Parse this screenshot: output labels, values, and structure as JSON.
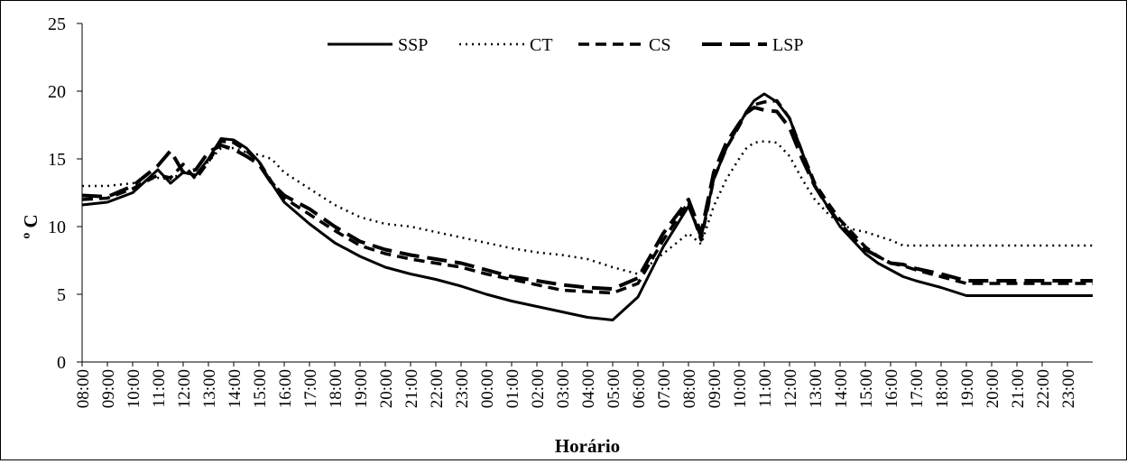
{
  "chart_data": {
    "type": "line",
    "xlabel": "Horário",
    "ylabel": "º C",
    "ylim": [
      0,
      25
    ],
    "yticks": [
      "0",
      "5",
      "10",
      "15",
      "20",
      "25"
    ],
    "grid": false,
    "legend_position": "top-center",
    "x_tick_labels": [
      "08:00",
      "09:00",
      "10:00",
      "11:00",
      "12:00",
      "13:00",
      "14:00",
      "15:00",
      "16:00",
      "17:00",
      "18:00",
      "19:00",
      "20:00",
      "21:00",
      "22:00",
      "23:00",
      "00:00",
      "01:00",
      "02:00",
      "03:00",
      "04:00",
      "05:00",
      "06:00",
      "07:00",
      "08:00",
      "09:00",
      "10:00",
      "11:00",
      "12:00",
      "13:00",
      "14:00",
      "15:00",
      "16:00",
      "17:00",
      "18:00",
      "19:00",
      "20:00",
      "21:00",
      "22:00",
      "23:00"
    ],
    "x_hours": [
      0,
      1,
      2,
      3,
      3.5,
      4,
      4.5,
      5,
      5.5,
      6,
      6.5,
      7,
      7.5,
      8,
      9,
      10,
      11,
      12,
      13,
      14,
      15,
      16,
      17,
      18,
      19,
      20,
      21,
      22,
      23,
      24,
      24.5,
      25,
      25.5,
      26,
      26.3,
      26.6,
      27,
      27.5,
      28,
      28.5,
      29,
      29.5,
      30,
      30.5,
      31,
      31.5,
      32,
      32.5,
      33,
      34,
      35,
      36,
      37,
      38,
      39,
      40
    ],
    "series": [
      {
        "name": "SSP",
        "style": "solid",
        "color": "#000000",
        "values": [
          11.6,
          11.8,
          12.5,
          14.2,
          13.2,
          14.0,
          13.8,
          15.0,
          16.5,
          16.4,
          15.8,
          14.8,
          13.2,
          11.8,
          10.2,
          8.8,
          7.8,
          7.0,
          6.5,
          6.1,
          5.6,
          5.0,
          4.5,
          4.1,
          3.7,
          3.3,
          3.1,
          4.8,
          8.5,
          11.5,
          9.2,
          13.5,
          15.8,
          17.5,
          18.5,
          19.3,
          19.8,
          19.2,
          18.0,
          15.5,
          13.0,
          11.5,
          10.0,
          9.0,
          8.0,
          7.3,
          6.8,
          6.3,
          6.0,
          5.5,
          4.9,
          4.9,
          4.9,
          4.9,
          4.9,
          4.9
        ]
      },
      {
        "name": "CT",
        "style": "dotted",
        "color": "#000000",
        "values": [
          13.0,
          13.0,
          13.2,
          13.6,
          13.5,
          14.0,
          13.8,
          14.8,
          15.8,
          15.8,
          15.5,
          15.3,
          15.0,
          14.0,
          12.8,
          11.6,
          10.7,
          10.2,
          10.0,
          9.6,
          9.2,
          8.8,
          8.4,
          8.1,
          7.9,
          7.6,
          7.0,
          6.5,
          8.0,
          9.5,
          8.7,
          11.5,
          13.5,
          15.0,
          15.8,
          16.2,
          16.3,
          16.2,
          15.2,
          13.5,
          12.0,
          11.0,
          10.2,
          9.8,
          9.6,
          9.3,
          9.0,
          8.6,
          8.6,
          8.6,
          8.6,
          8.6,
          8.6,
          8.6,
          8.6,
          8.6
        ]
      },
      {
        "name": "CS",
        "style": "dashed",
        "color": "#000000",
        "values": [
          12.0,
          12.1,
          12.8,
          13.8,
          13.6,
          14.6,
          13.5,
          14.8,
          16.3,
          16.2,
          15.6,
          14.8,
          13.3,
          12.1,
          10.9,
          9.7,
          8.6,
          8.0,
          7.6,
          7.3,
          7.0,
          6.5,
          6.1,
          5.7,
          5.3,
          5.2,
          5.1,
          5.8,
          9.0,
          11.8,
          9.0,
          13.5,
          15.8,
          17.4,
          18.5,
          19.0,
          19.2,
          19.3,
          18.0,
          15.5,
          13.2,
          11.8,
          10.5,
          9.5,
          8.5,
          7.8,
          7.3,
          7.1,
          6.8,
          6.3,
          5.8,
          5.8,
          5.8,
          5.8,
          5.8,
          5.8
        ]
      },
      {
        "name": "LSP",
        "style": "long-dash",
        "color": "#000000",
        "values": [
          12.3,
          12.2,
          13.0,
          14.5,
          15.6,
          14.0,
          14.2,
          15.5,
          16.0,
          15.7,
          15.2,
          14.6,
          13.2,
          12.3,
          11.3,
          10.0,
          8.9,
          8.3,
          7.9,
          7.6,
          7.3,
          6.8,
          6.3,
          6.0,
          5.7,
          5.5,
          5.4,
          6.2,
          9.5,
          12.0,
          9.5,
          14.0,
          16.2,
          17.6,
          18.4,
          18.8,
          18.6,
          18.5,
          17.3,
          15.0,
          13.0,
          11.5,
          10.2,
          9.2,
          8.3,
          7.8,
          7.3,
          7.2,
          6.9,
          6.5,
          6.0,
          6.0,
          6.0,
          6.0,
          6.0,
          6.0
        ]
      }
    ]
  }
}
